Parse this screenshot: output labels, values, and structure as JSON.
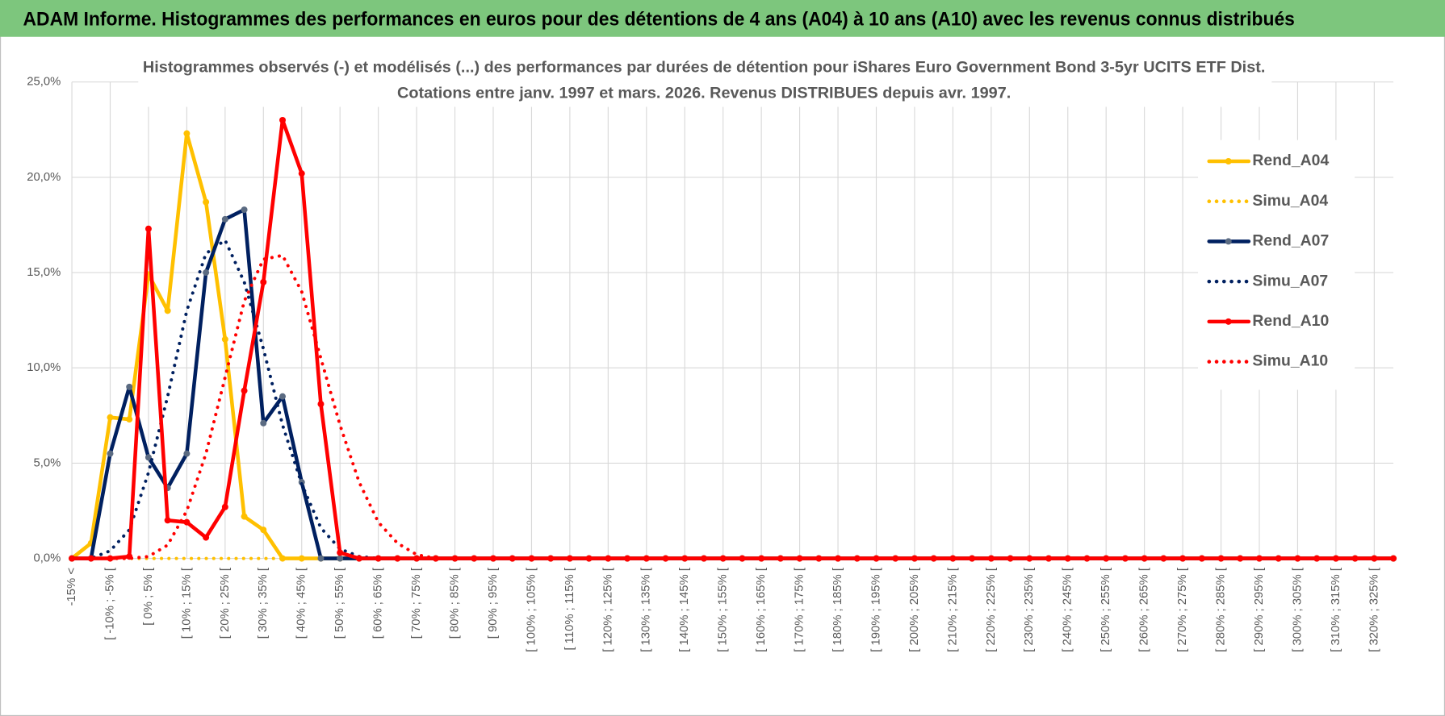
{
  "header": {
    "title": "ADAM Informe. Histogrammes des performances en euros pour des détentions de 4 ans (A04) à 10 ans (A10) avec les revenus connus distribués"
  },
  "chart_data": {
    "type": "line",
    "title": "Histogrammes observés (-) et modélisés (...) des performances par durées de détention pour iShares Euro Government Bond 3-5yr UCITS ETF Dist.",
    "subtitle": "Cotations entre janv. 1997 et mars. 2026. Revenus DISTRIBUES depuis avr. 1997.",
    "categories": [
      "-15% <",
      null,
      "[ -10% ; -5% [",
      null,
      "[ 0% ; 5% [",
      null,
      "[ 10% ; 15% [",
      null,
      "[ 20% ; 25% [",
      null,
      "[ 30% ; 35% [",
      null,
      "[ 40% ; 45% [",
      null,
      "[ 50% ; 55% [",
      null,
      "[ 60% ; 65% [",
      null,
      "[ 70% ; 75% [",
      null,
      "[ 80% ; 85% [",
      null,
      "[ 90% ; 95% [",
      null,
      "[ 100% ; 105% [",
      null,
      "[ 110% ; 115% [",
      null,
      "[ 120% ; 125% [",
      null,
      "[ 130% ; 135% [",
      null,
      "[ 140% ; 145% [",
      null,
      "[ 150% ; 155% [",
      null,
      "[ 160% ; 165% [",
      null,
      "[ 170% ; 175% [",
      null,
      "[ 180% ; 185% [",
      null,
      "[ 190% ; 195% [",
      null,
      "[ 200% ; 205% [",
      null,
      "[ 210% ; 215% [",
      null,
      "[ 220% ; 225% [",
      null,
      "[ 230% ; 235% [",
      null,
      "[ 240% ; 245% [",
      null,
      "[ 250% ; 255% [",
      null,
      "[ 260% ; 265% [",
      null,
      "[ 270% ; 275% [",
      null,
      "[ 280% ; 285% [",
      null,
      "[ 290% ; 295% [",
      null,
      "[ 300% ; 305% [",
      null,
      "[ 310% ; 315% [",
      null,
      "[ 320% ; 325% [",
      null
    ],
    "series": [
      {
        "name": "Rend_A04",
        "color": "#ffc000",
        "style": "solid",
        "markers": true,
        "values": [
          0,
          0.8,
          7.4,
          7.3,
          14.9,
          13.0,
          22.3,
          18.7,
          11.5,
          2.2,
          1.5,
          0,
          0,
          0,
          0,
          0,
          0,
          0,
          0,
          0,
          0,
          0,
          0,
          0,
          0,
          0,
          0,
          0,
          0,
          0,
          0,
          0,
          0,
          0,
          0,
          0,
          0,
          0,
          0,
          0,
          0,
          0,
          0,
          0,
          0,
          0,
          0,
          0,
          0,
          0,
          0,
          0,
          0,
          0,
          0,
          0,
          0,
          0,
          0,
          0,
          0,
          0,
          0,
          0,
          0,
          0,
          0,
          0,
          0,
          0
        ]
      },
      {
        "name": "Simu_A04",
        "color": "#ffc000",
        "style": "dotted",
        "markers": false,
        "values": [
          0,
          0,
          0,
          0,
          0,
          0,
          0,
          0,
          0,
          0,
          0,
          0,
          0,
          0,
          0,
          0,
          0,
          0,
          0,
          0,
          0,
          0,
          0,
          0,
          0,
          0,
          0,
          0,
          0,
          0,
          0,
          0,
          0,
          0,
          0,
          0,
          0,
          0,
          0,
          0,
          0,
          0,
          0,
          0,
          0,
          0,
          0,
          0,
          0,
          0,
          0,
          0,
          0,
          0,
          0,
          0,
          0,
          0,
          0,
          0,
          0,
          0,
          0,
          0,
          0,
          0,
          0,
          0,
          0,
          0
        ]
      },
      {
        "name": "Rend_A07",
        "color": "#002060",
        "style": "solid",
        "markers": true,
        "values": [
          0,
          0,
          5.5,
          9.0,
          5.3,
          3.7,
          5.5,
          15.0,
          17.8,
          18.3,
          7.1,
          8.5,
          4.0,
          0,
          0,
          0,
          0,
          0,
          0,
          0,
          0,
          0,
          0,
          0,
          0,
          0,
          0,
          0,
          0,
          0,
          0,
          0,
          0,
          0,
          0,
          0,
          0,
          0,
          0,
          0,
          0,
          0,
          0,
          0,
          0,
          0,
          0,
          0,
          0,
          0,
          0,
          0,
          0,
          0,
          0,
          0,
          0,
          0,
          0,
          0,
          0,
          0,
          0,
          0,
          0,
          0,
          0,
          0,
          0,
          0
        ]
      },
      {
        "name": "Simu_A07",
        "color": "#002060",
        "style": "dotted",
        "markers": false,
        "values": [
          0,
          0,
          0.4,
          1.5,
          4.5,
          8.5,
          13.0,
          16.0,
          16.7,
          14.5,
          11.0,
          7.0,
          3.9,
          1.6,
          0.5,
          0.1,
          0,
          0,
          0,
          0,
          0,
          0,
          0,
          0,
          0,
          0,
          0,
          0,
          0,
          0,
          0,
          0,
          0,
          0,
          0,
          0,
          0,
          0,
          0,
          0,
          0,
          0,
          0,
          0,
          0,
          0,
          0,
          0,
          0,
          0,
          0,
          0,
          0,
          0,
          0,
          0,
          0,
          0,
          0,
          0,
          0,
          0,
          0,
          0,
          0,
          0,
          0,
          0,
          0,
          0
        ]
      },
      {
        "name": "Rend_A10",
        "color": "#ff0000",
        "style": "solid",
        "markers": true,
        "values": [
          0,
          0,
          0,
          0.1,
          17.3,
          2.0,
          1.9,
          1.1,
          2.7,
          8.8,
          14.5,
          23.0,
          20.2,
          8.1,
          0.3,
          0,
          0,
          0,
          0,
          0,
          0,
          0,
          0,
          0,
          0,
          0,
          0,
          0,
          0,
          0,
          0,
          0,
          0,
          0,
          0,
          0,
          0,
          0,
          0,
          0,
          0,
          0,
          0,
          0,
          0,
          0,
          0,
          0,
          0,
          0,
          0,
          0,
          0,
          0,
          0,
          0,
          0,
          0,
          0,
          0,
          0,
          0,
          0,
          0,
          0,
          0,
          0,
          0,
          0,
          0
        ]
      },
      {
        "name": "Simu_A10",
        "color": "#ff0000",
        "style": "dotted",
        "markers": false,
        "values": [
          0,
          0,
          0,
          0,
          0.1,
          0.7,
          2.5,
          5.5,
          9.5,
          13.5,
          15.7,
          15.9,
          14.0,
          10.5,
          7.0,
          4.0,
          1.9,
          0.8,
          0.2,
          0,
          0,
          0,
          0,
          0,
          0,
          0,
          0,
          0,
          0,
          0,
          0,
          0,
          0,
          0,
          0,
          0,
          0,
          0,
          0,
          0,
          0,
          0,
          0,
          0,
          0,
          0,
          0,
          0,
          0,
          0,
          0,
          0,
          0,
          0,
          0,
          0,
          0,
          0,
          0,
          0,
          0,
          0,
          0,
          0,
          0,
          0,
          0,
          0,
          0,
          0
        ]
      }
    ],
    "ylim": [
      0,
      25
    ],
    "yticks": [
      {
        "value": 0,
        "label": "0,0%"
      },
      {
        "value": 5,
        "label": "5,0%"
      },
      {
        "value": 10,
        "label": "10,0%"
      },
      {
        "value": 15,
        "label": "15,0%"
      },
      {
        "value": 20,
        "label": "20,0%"
      },
      {
        "value": 25,
        "label": "25,0%"
      }
    ],
    "grid": true,
    "legend": "right"
  }
}
